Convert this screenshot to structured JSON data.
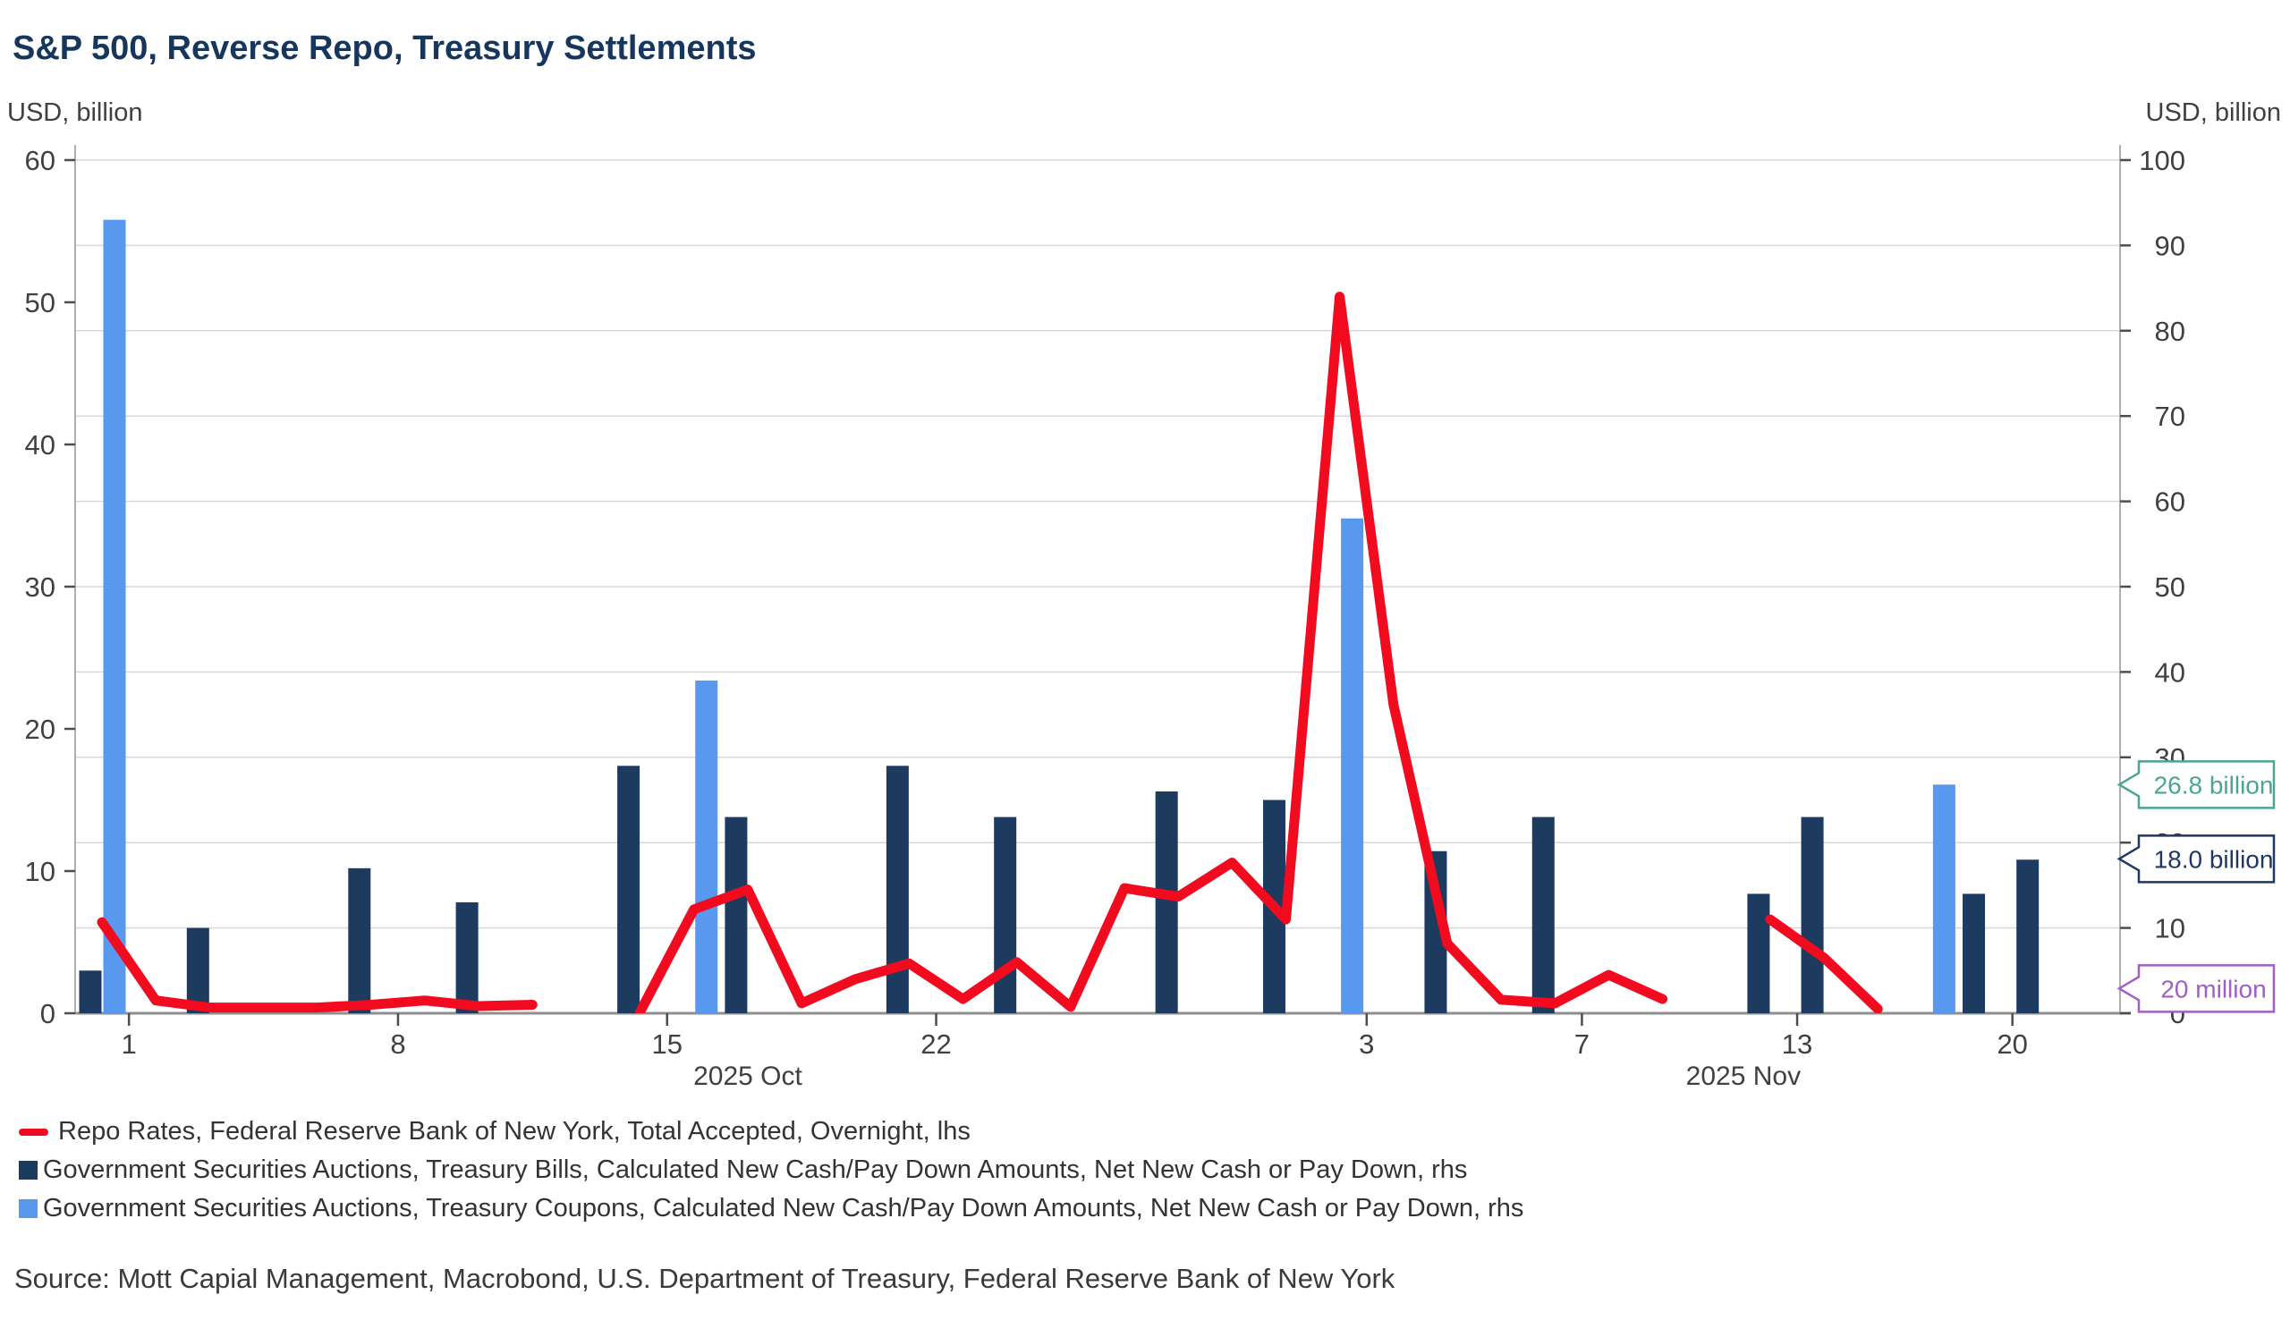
{
  "title": "S&P 500, Reverse Repo, Treasury Settlements",
  "axis_units": {
    "left": "USD, billion",
    "right": "USD, billion"
  },
  "legend": [
    {
      "label": "Repo Rates, Federal Reserve Bank of New York, Total Accepted, Overnight, lhs",
      "color": "#f20a1e",
      "swatch": "line"
    },
    {
      "label": "Government Securities Auctions, Treasury Bills, Calculated New Cash/Pay Down Amounts, Net New Cash or Pay Down, rhs",
      "color": "#1d3a5f",
      "swatch": "bar"
    },
    {
      "label": "Government Securities Auctions, Treasury Coupons, Calculated New Cash/Pay Down Amounts, Net New Cash or Pay Down, rhs",
      "color": "#5898ee",
      "swatch": "bar"
    }
  ],
  "source": "Source: Mott Capial Management, Macrobond, U.S. Department of Treasury, Federal Reserve Bank of New York",
  "colors": {
    "title": "#17365d",
    "tick_text": "#404040",
    "gridline": "#d7d7d7",
    "axis_line": "#b0b0b0",
    "bottom_axis_line": "#8f8f8f",
    "tick_mark": "#4d4d4d"
  },
  "chart_data": {
    "type": "bar+line, dual axis, weekday time axis",
    "x_slots": [
      "Sep 30",
      "Oct 1",
      "Oct 2",
      "Oct 3",
      "Oct 6",
      "Oct 7",
      "Oct 8",
      "Oct 9",
      "Oct 10",
      "Oct 13",
      "Oct 14",
      "Oct 15",
      "Oct 16",
      "Oct 17",
      "Oct 20",
      "Oct 21",
      "Oct 22",
      "Oct 23",
      "Oct 24",
      "Oct 27",
      "Oct 28",
      "Oct 29",
      "Oct 30",
      "Oct 31",
      "Nov 3",
      "Nov 4",
      "Nov 5",
      "Nov 6",
      "Nov 7",
      "Nov 10",
      "Nov 11",
      "Nov 12",
      "Nov 13",
      "Nov 14",
      "Nov 17",
      "Nov 18",
      "Nov 20",
      "Nov 21"
    ],
    "x_ticks": [
      {
        "slot": 1,
        "label": "1"
      },
      {
        "slot": 6,
        "label": "8"
      },
      {
        "slot": 11,
        "label": "15"
      },
      {
        "slot": 16,
        "label": "22"
      },
      {
        "slot": 24,
        "label": "3"
      },
      {
        "slot": 28,
        "label": "7"
      },
      {
        "slot": 32,
        "label": "13"
      },
      {
        "slot": 36,
        "label": "20"
      }
    ],
    "x_month_labels": [
      {
        "label": "2025 Oct",
        "from_slot": 1,
        "to_slot": 23
      },
      {
        "label": "2025 Nov",
        "from_slot": 24,
        "to_slot": 37
      }
    ],
    "left_axis": {
      "unit": "USD, billion",
      "min": 0,
      "max": 60,
      "tick_step": 10
    },
    "right_axis": {
      "unit": "USD, billion",
      "min": 0,
      "max": 100,
      "tick_step": 10
    },
    "gridlines": "horizontal, at every right-axis tick (10)",
    "series": [
      {
        "name": "Repo Rates, Federal Reserve Bank of New York, Total Accepted, Overnight",
        "type": "line",
        "axis": "lhs",
        "color": "#f20a1e",
        "stroke_width": 11,
        "points": [
          [
            "Sep 30",
            6.4
          ],
          [
            "Oct 1",
            0.9
          ],
          [
            "Oct 2",
            0.4
          ],
          [
            "Oct 3",
            0.4
          ],
          [
            "Oct 6",
            0.4
          ],
          [
            "Oct 7",
            0.6
          ],
          [
            "Oct 8",
            0.9
          ],
          [
            "Oct 9",
            0.5
          ],
          [
            "Oct 10",
            0.6
          ],
          [
            "Oct 14",
            0.1
          ],
          [
            "Oct 15",
            7.3
          ],
          [
            "Oct 16",
            8.7
          ],
          [
            "Oct 17",
            0.7
          ],
          [
            "Oct 20",
            2.4
          ],
          [
            "Oct 21",
            3.5
          ],
          [
            "Oct 22",
            1.0
          ],
          [
            "Oct 23",
            3.6
          ],
          [
            "Oct 24",
            0.45
          ],
          [
            "Oct 27",
            8.8
          ],
          [
            "Oct 28",
            8.2
          ],
          [
            "Oct 29",
            10.6
          ],
          [
            "Oct 30",
            6.6
          ],
          [
            "Oct 31",
            50.4
          ],
          [
            "Nov 3",
            21.7
          ],
          [
            "Nov 4",
            4.9
          ],
          [
            "Nov 5",
            0.95
          ],
          [
            "Nov 6",
            0.7
          ],
          [
            "Nov 7",
            2.7
          ],
          [
            "Nov 10",
            1.0
          ],
          [
            "Nov 12",
            6.6
          ],
          [
            "Nov 13",
            3.9
          ],
          [
            "Nov 14",
            0.3
          ]
        ]
      },
      {
        "name": "Government Securities Auctions, Treasury Bills, Calculated New Cash/Pay Down Amounts, Net New Cash or Pay Down",
        "type": "bar",
        "axis": "rhs",
        "color": "#1d3a5f",
        "points": [
          [
            "Sep 30",
            5
          ],
          [
            "Oct 2",
            10
          ],
          [
            "Oct 7",
            17
          ],
          [
            "Oct 9",
            13
          ],
          [
            "Oct 14",
            29
          ],
          [
            "Oct 16",
            23
          ],
          [
            "Oct 21",
            29
          ],
          [
            "Oct 23",
            23
          ],
          [
            "Oct 28",
            26
          ],
          [
            "Oct 30",
            25
          ],
          [
            "Nov 4",
            19
          ],
          [
            "Nov 6",
            23
          ],
          [
            "Nov 12",
            14
          ],
          [
            "Nov 13",
            23
          ],
          [
            "Nov 18",
            14
          ],
          [
            "Nov 20",
            18
          ]
        ]
      },
      {
        "name": "Government Securities Auctions, Treasury Coupons, Calculated New Cash/Pay Down Amounts, Net New Cash or Pay Down",
        "type": "bar",
        "axis": "rhs",
        "color": "#5898ee",
        "points": [
          [
            "Sep 30",
            93
          ],
          [
            "Oct 15",
            39
          ],
          [
            "Oct 31",
            58
          ],
          [
            "Nov 17",
            26.8
          ]
        ]
      }
    ],
    "callouts": [
      {
        "label": "26.8 billion",
        "color": "#4ba592",
        "anchor_rhs": 26.8
      },
      {
        "label": "18.0 billion",
        "color": "#1f3864",
        "anchor_rhs": 18.1
      },
      {
        "label": "20 million",
        "color": "#9f5fc4",
        "anchor_rhs": 2.9
      }
    ]
  }
}
